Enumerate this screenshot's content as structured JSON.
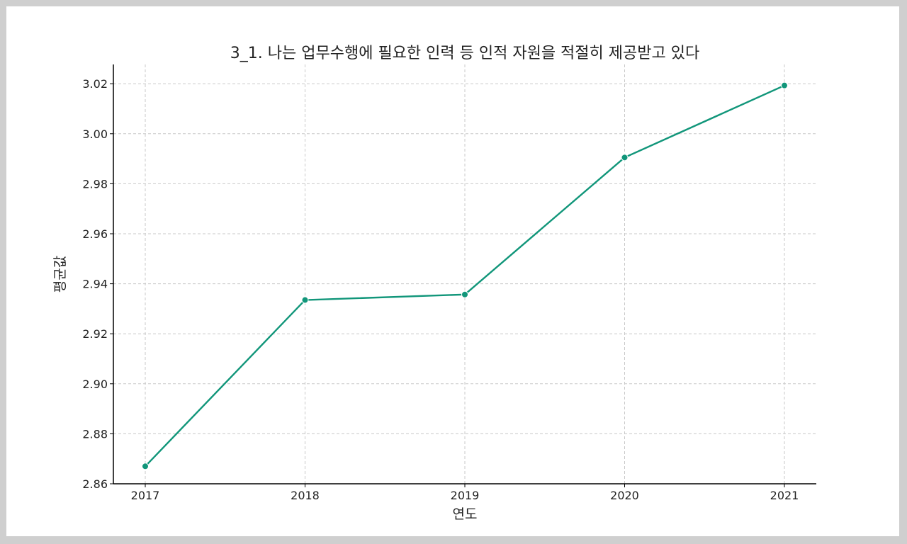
{
  "chart_data": {
    "type": "line",
    "title": "3_1. 나는 업무수행에 필요한 인력 등 인적 자원을 적절히 제공받고 있다",
    "xlabel": "연도",
    "ylabel": "평균값",
    "categories": [
      "2017",
      "2018",
      "2019",
      "2020",
      "2021"
    ],
    "series": [
      {
        "values": [
          2.867,
          2.9335,
          2.9357,
          2.9905,
          3.0193
        ],
        "color": "#11967a"
      }
    ],
    "ylim": [
      2.86,
      3.027
    ],
    "yticks": [
      "2.86",
      "2.88",
      "2.90",
      "2.92",
      "2.94",
      "2.96",
      "2.98",
      "3.00",
      "3.02"
    ],
    "grid": true,
    "markers": true
  }
}
